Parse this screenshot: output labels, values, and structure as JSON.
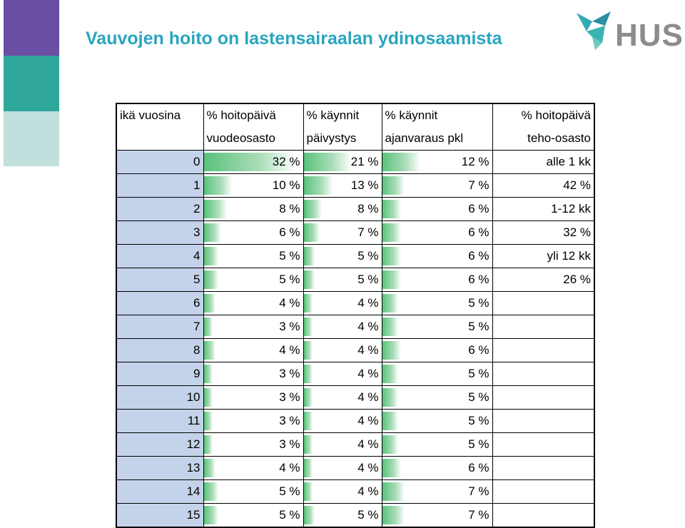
{
  "slide": {
    "title": "Vauvojen hoito on lastensairaalan ydinosaamista",
    "logo_text": "HUS"
  },
  "colors": {
    "title": "#2aa5c0",
    "band_purple": "#6a4ea3",
    "band_teal": "#2fa79b",
    "band_light": "#c1dfdc",
    "bar_green": "#5ac27c",
    "age_fill": "#c5d3ea"
  },
  "table": {
    "headers_row1": [
      "ikä vuosina",
      "% hoitopäivä",
      "% käynnit",
      "% käynnit",
      "% hoitopäivä"
    ],
    "headers_row2": [
      "",
      "vuodeosasto",
      "päivystys",
      "ajanvaraus pkl",
      "teho-osasto"
    ],
    "rows": [
      {
        "age": "0",
        "ward": "32 %",
        "ward_pct": 32,
        "er": "21 %",
        "er_pct": 21,
        "opc": "12 %",
        "opc_pct": 12,
        "picu": "alle 1 kk"
      },
      {
        "age": "1",
        "ward": "10 %",
        "ward_pct": 10,
        "er": "13 %",
        "er_pct": 13,
        "opc": "7 %",
        "opc_pct": 7,
        "picu": "42 %"
      },
      {
        "age": "2",
        "ward": "8 %",
        "ward_pct": 8,
        "er": "8 %",
        "er_pct": 8,
        "opc": "6 %",
        "opc_pct": 6,
        "picu": "1-12 kk"
      },
      {
        "age": "3",
        "ward": "6 %",
        "ward_pct": 6,
        "er": "7 %",
        "er_pct": 7,
        "opc": "6 %",
        "opc_pct": 6,
        "picu": "32 %"
      },
      {
        "age": "4",
        "ward": "5 %",
        "ward_pct": 5,
        "er": "5 %",
        "er_pct": 5,
        "opc": "6 %",
        "opc_pct": 6,
        "picu": "yli 12 kk"
      },
      {
        "age": "5",
        "ward": "5 %",
        "ward_pct": 5,
        "er": "5 %",
        "er_pct": 5,
        "opc": "6 %",
        "opc_pct": 6,
        "picu": "26 %"
      },
      {
        "age": "6",
        "ward": "4 %",
        "ward_pct": 4,
        "er": "4 %",
        "er_pct": 4,
        "opc": "5 %",
        "opc_pct": 5,
        "picu": ""
      },
      {
        "age": "7",
        "ward": "3 %",
        "ward_pct": 3,
        "er": "4 %",
        "er_pct": 4,
        "opc": "5 %",
        "opc_pct": 5,
        "picu": ""
      },
      {
        "age": "8",
        "ward": "4 %",
        "ward_pct": 4,
        "er": "4 %",
        "er_pct": 4,
        "opc": "6 %",
        "opc_pct": 6,
        "picu": ""
      },
      {
        "age": "9",
        "ward": "3 %",
        "ward_pct": 3,
        "er": "4 %",
        "er_pct": 4,
        "opc": "5 %",
        "opc_pct": 5,
        "picu": ""
      },
      {
        "age": "10",
        "ward": "3 %",
        "ward_pct": 3,
        "er": "4 %",
        "er_pct": 4,
        "opc": "5 %",
        "opc_pct": 5,
        "picu": ""
      },
      {
        "age": "11",
        "ward": "3 %",
        "ward_pct": 3,
        "er": "4 %",
        "er_pct": 4,
        "opc": "5 %",
        "opc_pct": 5,
        "picu": ""
      },
      {
        "age": "12",
        "ward": "3 %",
        "ward_pct": 3,
        "er": "4 %",
        "er_pct": 4,
        "opc": "5 %",
        "opc_pct": 5,
        "picu": ""
      },
      {
        "age": "13",
        "ward": "4 %",
        "ward_pct": 4,
        "er": "4 %",
        "er_pct": 4,
        "opc": "6 %",
        "opc_pct": 6,
        "picu": ""
      },
      {
        "age": "14",
        "ward": "5 %",
        "ward_pct": 5,
        "er": "4 %",
        "er_pct": 4,
        "opc": "7 %",
        "opc_pct": 7,
        "picu": ""
      },
      {
        "age": "15",
        "ward": "5 %",
        "ward_pct": 5,
        "er": "5 %",
        "er_pct": 5,
        "opc": "7 %",
        "opc_pct": 7,
        "picu": ""
      }
    ]
  }
}
